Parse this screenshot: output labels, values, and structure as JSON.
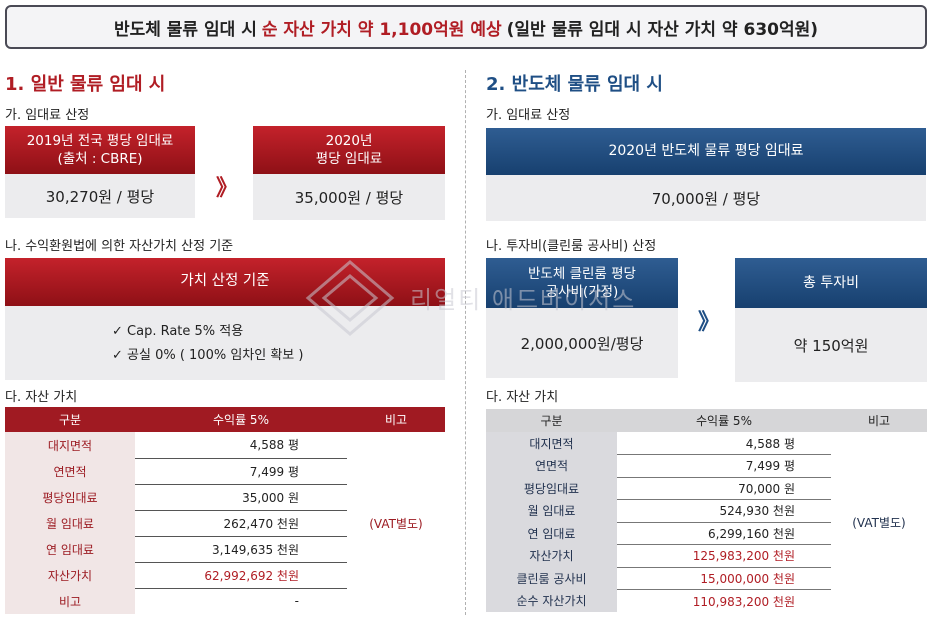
{
  "banner": {
    "part1": "반도체 물류 임대 시",
    "part2": "순 자산 가치 약 1,100억원 예상",
    "part3": "(일반 물류 임대 시 자산 가치 약 630억원)"
  },
  "watermark": "리얼티 애드바이저스",
  "left": {
    "title": "1. 일반 물류 임대 시",
    "rent_sub": "가. 임대료 산정",
    "box1_header_line1": "2019년 전국 평당 임대료",
    "box1_header_line2": "(출처 : CBRE)",
    "box1_value": "30,270원 / 평당",
    "box2_header_line1": "2020년",
    "box2_header_line2": "평당 임대료",
    "box2_value": "35,000원 / 평당",
    "arrow": "》",
    "basis_sub": "나. 수익환원법에 의한 자산가치 산정 기준",
    "basis_header": "가치 산정 기준",
    "basis_item1": "✓  Cap. Rate 5% 적용",
    "basis_item2": "✓  공실 0% ( 100% 임차인 확보 )",
    "asset_sub": "다. 자산 가치",
    "table": {
      "headers": [
        "구분",
        "수익률 5%",
        "비고"
      ],
      "rows": [
        {
          "label": "대지면적",
          "value": "4,588 평"
        },
        {
          "label": "연면적",
          "value": "7,499 평"
        },
        {
          "label": "평당임대료",
          "value": "35,000 원"
        },
        {
          "label": "월 임대료",
          "value": "262,470 천원"
        },
        {
          "label": "연 임대료",
          "value": "3,149,635 천원"
        },
        {
          "label": "자산가치",
          "value": "62,992,692 천원"
        },
        {
          "label": "비고",
          "value": "-"
        }
      ],
      "note": "(VAT별도)"
    }
  },
  "right": {
    "title": "2. 반도체 물류 임대 시",
    "rent_sub": "가. 임대료 산정",
    "rent_header": "2020년 반도체 물류 평당 임대료",
    "rent_value": "70,000원 / 평당",
    "invest_sub": "나. 투자비(클린룸 공사비) 산정",
    "box1_header_line1": "반도체 클린룸 평당",
    "box1_header_line2": "공사비(가정)",
    "box1_value": "2,000,000원/평당",
    "box2_header": "총 투자비",
    "box2_value": "약 150억원",
    "arrow": "》",
    "asset_sub": "다. 자산 가치",
    "table": {
      "headers": [
        "구분",
        "수익률 5%",
        "비고"
      ],
      "rows": [
        {
          "label": "대지면적",
          "value": "4,588 평"
        },
        {
          "label": "연면적",
          "value": "7,499 평"
        },
        {
          "label": "평당임대료",
          "value": "70,000 원"
        },
        {
          "label": "월 임대료",
          "value": "524,930 천원"
        },
        {
          "label": "연 임대료",
          "value": "6,299,160 천원"
        },
        {
          "label": "자산가치",
          "value": "125,983,200 천원"
        },
        {
          "label": "클린룸 공사비",
          "value": "15,000,000 천원"
        },
        {
          "label": "순수 자산가치",
          "value": "110,983,200 천원"
        }
      ],
      "note": "(VAT별도)"
    }
  },
  "colors": {
    "accent_red": "#b01d24",
    "accent_blue": "#1f4f85"
  }
}
